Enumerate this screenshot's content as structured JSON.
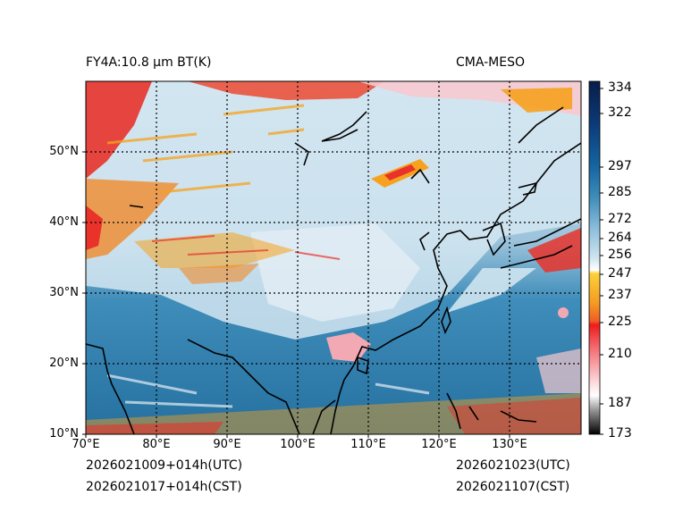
{
  "header": {
    "left_title": "FY4A:10.8 µm BT(K)",
    "right_title": "CMA-MESO"
  },
  "footer": {
    "forecast_utc": "2026021009+014h(UTC)",
    "forecast_cst": "2026021017+014h(CST)",
    "valid_utc": "2026021023(UTC)",
    "valid_cst": "2026021107(CST)"
  },
  "map": {
    "lon_labels": [
      "70°E",
      "80°E",
      "90°E",
      "100°E",
      "110°E",
      "120°E",
      "130°E"
    ],
    "lat_labels": [
      "50°N",
      "40°N",
      "30°N",
      "20°N",
      "10°N"
    ],
    "lon_range": [
      70,
      140
    ],
    "lat_range": [
      10,
      60
    ]
  },
  "colorbar": {
    "ticks": [
      "334",
      "322",
      "297",
      "285",
      "272",
      "264",
      "256",
      "247",
      "237",
      "225",
      "210",
      "187",
      "173"
    ],
    "tick_values": [
      334,
      322,
      297,
      285,
      272,
      264,
      256,
      247,
      237,
      225,
      210,
      187,
      173
    ],
    "range": [
      173,
      338
    ]
  },
  "colors": {
    "cold_cloud": "#e8322a",
    "mid_cloud": "#f6a21e",
    "clear_ocean": "#2f7fae",
    "clear_land": "#bcd9ea"
  }
}
